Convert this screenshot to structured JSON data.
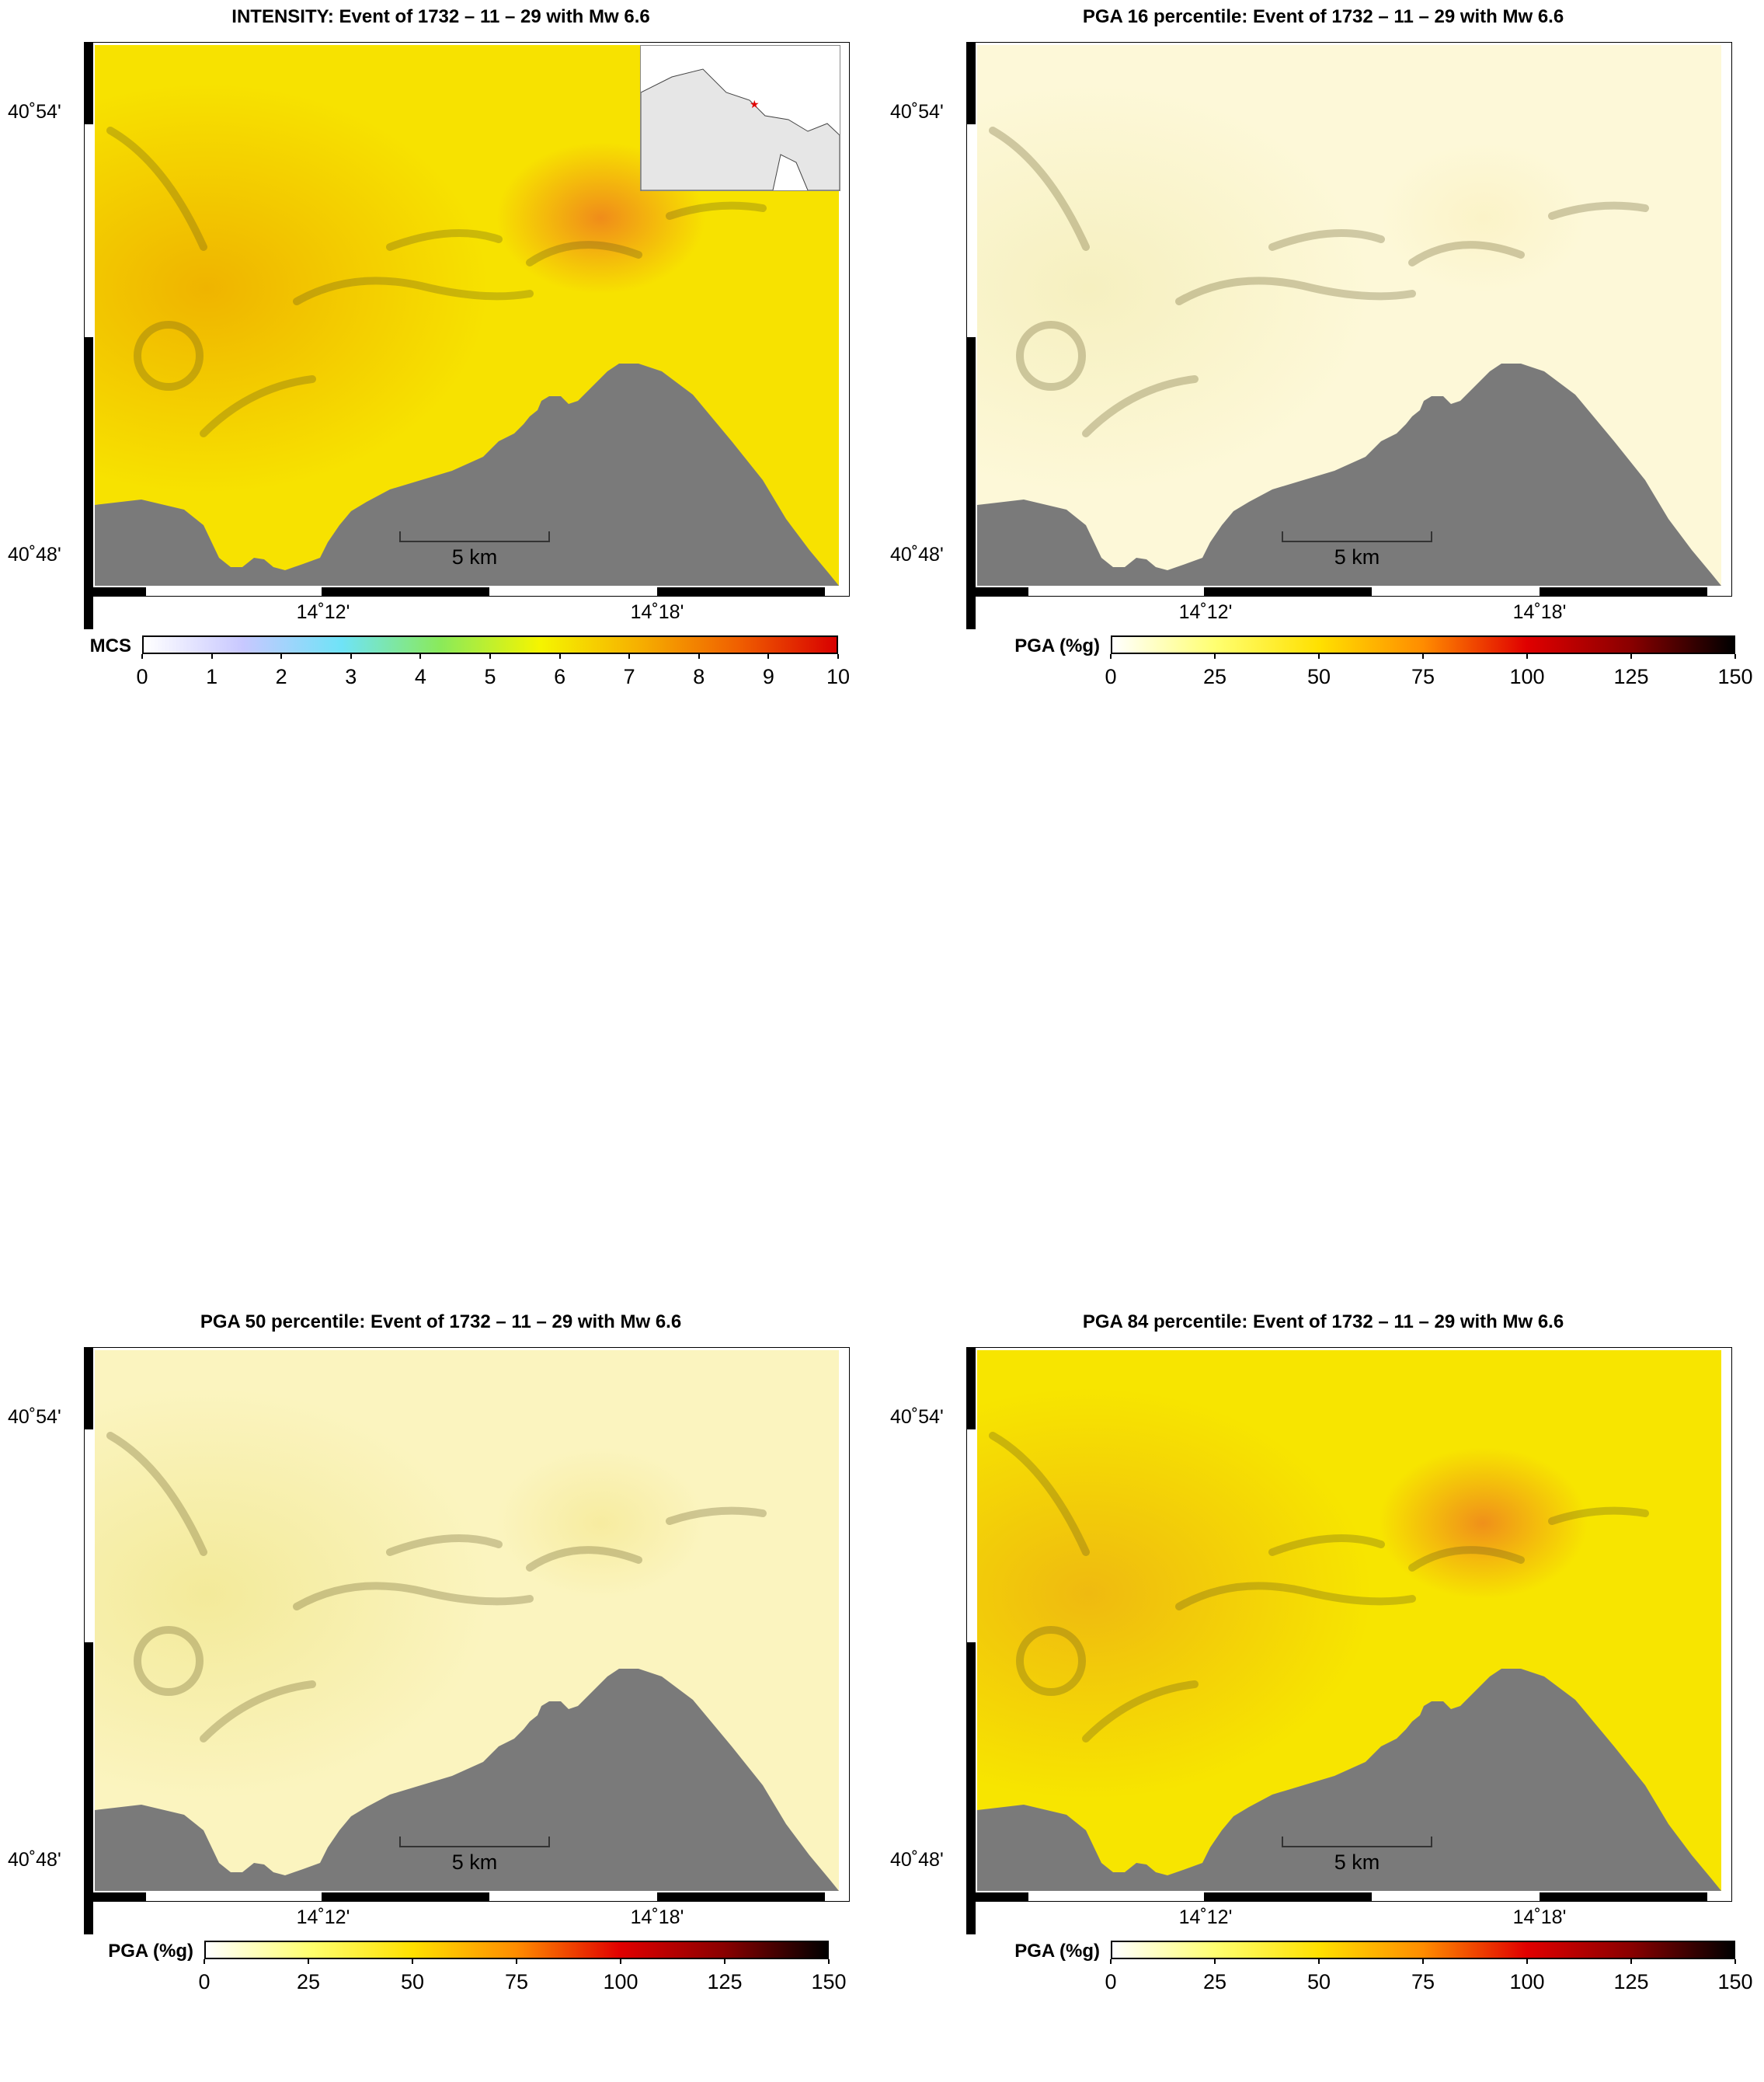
{
  "panels": [
    {
      "title": "INTENSITY: Event of 1732 – 11 – 29 with Mw 6.6",
      "scale": "intensity",
      "inset": true,
      "legend": {
        "label": "MCS",
        "ticks": [
          "0",
          "1",
          "2",
          "3",
          "4",
          "5",
          "6",
          "7",
          "8",
          "9",
          "10"
        ]
      }
    },
    {
      "title": "PGA 16 percentile: Event of 1732 – 11 – 29 with Mw 6.6",
      "scale": "p16",
      "inset": false,
      "legend": {
        "label": "PGA (%g)",
        "ticks": [
          "0",
          "25",
          "50",
          "75",
          "100",
          "125",
          "150"
        ]
      }
    },
    {
      "title": "PGA 50 percentile: Event of 1732 – 11 – 29 with Mw 6.6",
      "scale": "p50",
      "inset": false,
      "legend": {
        "label": "PGA (%g)",
        "ticks": [
          "0",
          "25",
          "50",
          "75",
          "100",
          "125",
          "150"
        ]
      }
    },
    {
      "title": "PGA 84 percentile: Event of 1732 – 11 – 29 with Mw 6.6",
      "scale": "p84",
      "inset": false,
      "legend": {
        "label": "PGA (%g)",
        "ticks": [
          "0",
          "25",
          "50",
          "75",
          "100",
          "125",
          "150"
        ]
      }
    }
  ],
  "axes": {
    "lat_top": "40˚54'",
    "lat_bottom": "40˚48'",
    "lon_left": "14˚12'",
    "lon_right": "14˚18'"
  },
  "scale_bar": "5 km",
  "colors": {
    "sea": "#7a7a7a",
    "intensity": {
      "base": "#f7e200",
      "west": "#efb400",
      "hot": "#f08c1a"
    },
    "p16": {
      "base": "#fdf8d8",
      "west": "#f6f0c0",
      "hot": "#fbf3c8"
    },
    "p50": {
      "base": "#fbf4bf",
      "west": "#f3ea9a",
      "hot": "#f7eca0"
    },
    "p84": {
      "base": "#f7e500",
      "west": "#efba10",
      "hot": "#f0901a"
    },
    "intensity_gradient": [
      "#ffffff",
      "#c8c8ff",
      "#6fe3f7",
      "#8aea5a",
      "#f5f500",
      "#f6b000",
      "#f06000",
      "#d80000"
    ],
    "pga_gradient": [
      "#ffffff",
      "#ffff70",
      "#ffe000",
      "#ff8c00",
      "#e00000",
      "#8a0000",
      "#000000"
    ]
  }
}
